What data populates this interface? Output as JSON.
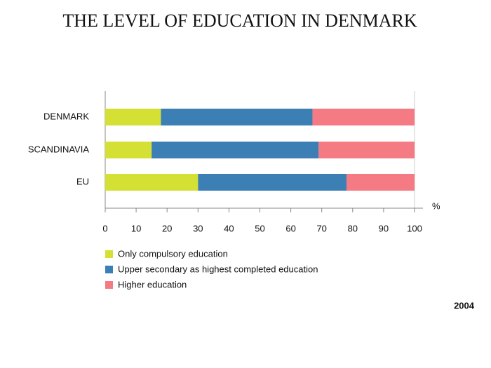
{
  "chart_data": {
    "type": "bar",
    "orientation": "horizontal",
    "stacked": true,
    "title": "THE LEVEL OF EDUCATION IN DENMARK",
    "x_label": "%",
    "annotation": "2004",
    "categories": [
      "DENMARK",
      "SCANDINAVIA",
      "EU"
    ],
    "series": [
      {
        "name": "Only compulsory education",
        "color": "#d4e034",
        "values": [
          18,
          15,
          30
        ]
      },
      {
        "name": "Upper secondary as highest completed education",
        "color": "#3b7fb5",
        "values": [
          49,
          54,
          48
        ]
      },
      {
        "name": "Higher education",
        "color": "#f47a83",
        "values": [
          33,
          31,
          22
        ]
      }
    ],
    "xlim": [
      0,
      100
    ],
    "xticks": [
      0,
      10,
      20,
      30,
      40,
      50,
      60,
      70,
      80,
      90,
      100
    ],
    "grid": false,
    "legend": "bottom"
  }
}
